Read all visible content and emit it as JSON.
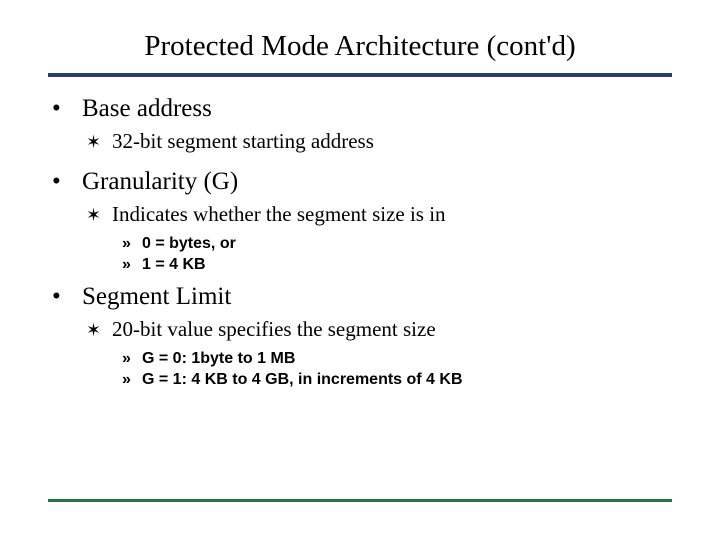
{
  "title": "Protected Mode Architecture (cont'd)",
  "colors": {
    "top_rule": "#273d73",
    "bottom_rule": "#28733d",
    "text": "#000000",
    "background": "#ffffff"
  },
  "bullets": {
    "l1": "•",
    "l2": "✶",
    "l3": "»"
  },
  "items": [
    {
      "text": "Base address",
      "sub": [
        {
          "text": "32-bit segment starting address",
          "sub": []
        }
      ]
    },
    {
      "text": "Granularity (G)",
      "sub": [
        {
          "text": "Indicates whether the segment size is in",
          "sub": [
            {
              "text": "0 = bytes, or"
            },
            {
              "text": "1 = 4 KB"
            }
          ]
        }
      ]
    },
    {
      "text": "Segment Limit",
      "sub": [
        {
          "text": "20-bit value specifies the segment size",
          "sub": [
            {
              "text": "G = 0: 1byte to 1 MB"
            },
            {
              "text": "G = 1: 4 KB to 4 GB, in increments of 4 KB"
            }
          ]
        }
      ]
    }
  ]
}
